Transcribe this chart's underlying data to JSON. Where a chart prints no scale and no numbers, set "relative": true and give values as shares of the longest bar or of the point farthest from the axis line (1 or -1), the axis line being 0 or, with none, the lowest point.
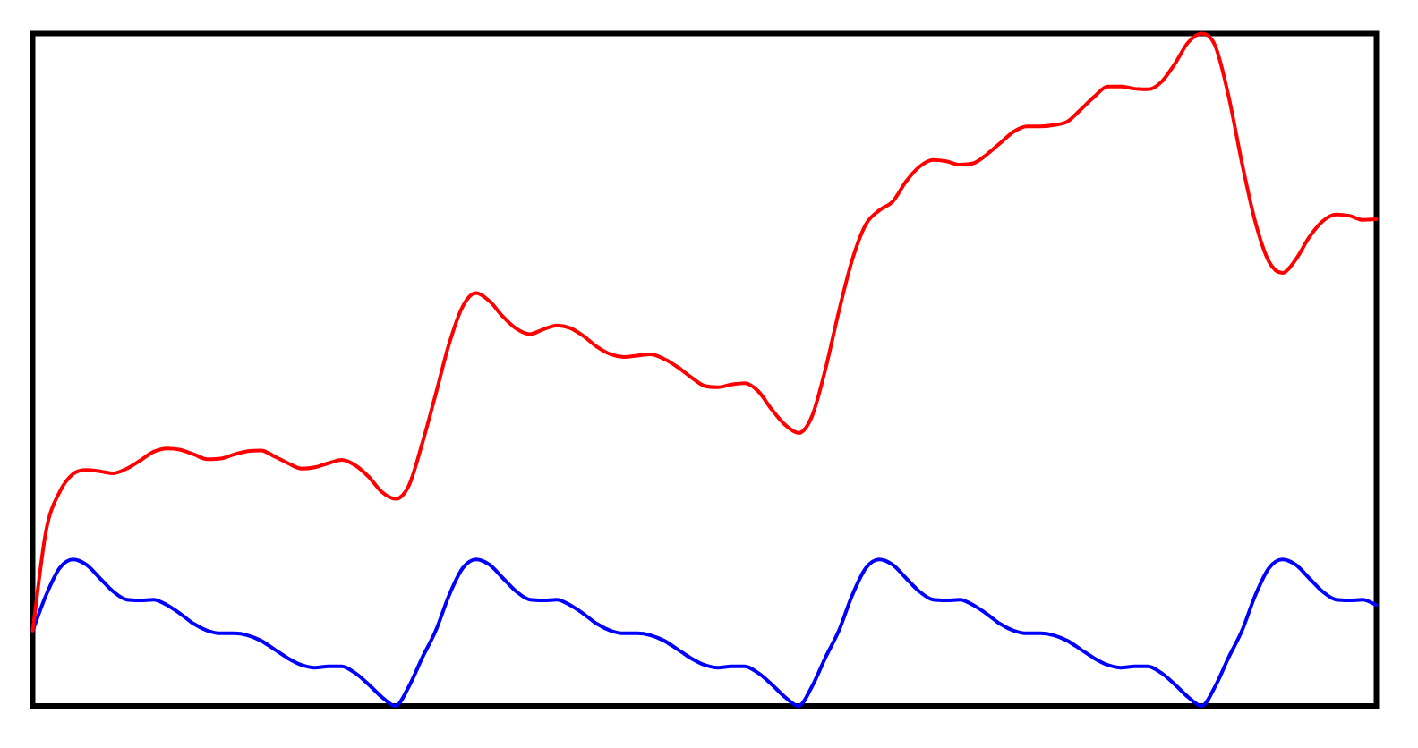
{
  "chart_data": {
    "type": "line",
    "relative": true,
    "categories": [
      null,
      null,
      null,
      null,
      null,
      null,
      null,
      null,
      null,
      null,
      null,
      null,
      null,
      null,
      null,
      null,
      null,
      null,
      null,
      null,
      null,
      null,
      null,
      null,
      null,
      null,
      null,
      null,
      null,
      null,
      null,
      null,
      null,
      null,
      null,
      null,
      null,
      null,
      null,
      null,
      null,
      null,
      null,
      null,
      null,
      null,
      null,
      null,
      null,
      null,
      null,
      null,
      null,
      null,
      null,
      null,
      null,
      null,
      null,
      null,
      null,
      null,
      null,
      null,
      null,
      null,
      null,
      null,
      null,
      null,
      null,
      null,
      null,
      null,
      null,
      null,
      null,
      null,
      null,
      null,
      null,
      null,
      null,
      null,
      null,
      null,
      null,
      null,
      null,
      null,
      null,
      null,
      null,
      null,
      null,
      null,
      null,
      null,
      null,
      null,
      null
    ],
    "series": [
      {
        "color": "#ff0000",
        "values": [
          0.112,
          0.261,
          0.318,
          0.345,
          0.351,
          0.349,
          0.346,
          0.353,
          0.365,
          0.378,
          0.383,
          0.381,
          0.374,
          0.367,
          0.368,
          0.374,
          0.379,
          0.38,
          0.371,
          0.361,
          0.353,
          0.355,
          0.361,
          0.366,
          0.358,
          0.341,
          0.318,
          0.308,
          0.328,
          0.391,
          0.464,
          0.539,
          0.594,
          0.614,
          0.602,
          0.579,
          0.561,
          0.553,
          0.56,
          0.566,
          0.562,
          0.55,
          0.534,
          0.523,
          0.519,
          0.521,
          0.523,
          0.516,
          0.504,
          0.489,
          0.476,
          0.474,
          0.478,
          0.48,
          0.468,
          0.441,
          0.418,
          0.406,
          0.431,
          0.501,
          0.587,
          0.664,
          0.716,
          0.737,
          0.75,
          0.78,
          0.802,
          0.812,
          0.81,
          0.805,
          0.807,
          0.82,
          0.837,
          0.854,
          0.862,
          0.862,
          0.864,
          0.869,
          0.887,
          0.906,
          0.921,
          0.921,
          0.918,
          0.917,
          0.928,
          0.955,
          0.987,
          1,
          0.982,
          0.907,
          0.807,
          0.719,
          0.661,
          0.644,
          0.664,
          0.697,
          0.721,
          0.731,
          0.729,
          0.723,
          0.724
        ]
      },
      {
        "color": "#0000ff",
        "values": [
          0.112,
          0.165,
          0.205,
          0.218,
          0.21,
          0.19,
          0.17,
          0.158,
          0.157,
          0.158,
          0.15,
          0.137,
          0.122,
          0.112,
          0.108,
          0.108,
          0.105,
          0.097,
          0.084,
          0.071,
          0.061,
          0.057,
          0.059,
          0.059,
          0.049,
          0.032,
          0.013,
          0,
          0.029,
          0.072,
          0.112,
          0.165,
          0.205,
          0.218,
          0.21,
          0.19,
          0.17,
          0.158,
          0.157,
          0.158,
          0.15,
          0.137,
          0.122,
          0.112,
          0.108,
          0.108,
          0.105,
          0.097,
          0.084,
          0.071,
          0.061,
          0.057,
          0.059,
          0.059,
          0.049,
          0.032,
          0.013,
          0,
          0.029,
          0.072,
          0.112,
          0.165,
          0.205,
          0.218,
          0.21,
          0.19,
          0.17,
          0.158,
          0.157,
          0.158,
          0.15,
          0.137,
          0.122,
          0.112,
          0.108,
          0.108,
          0.105,
          0.097,
          0.084,
          0.071,
          0.061,
          0.057,
          0.059,
          0.059,
          0.049,
          0.032,
          0.013,
          0,
          0.029,
          0.072,
          0.112,
          0.165,
          0.205,
          0.218,
          0.21,
          0.19,
          0.17,
          0.158,
          0.157,
          0.158,
          0.15
        ]
      }
    ]
  }
}
